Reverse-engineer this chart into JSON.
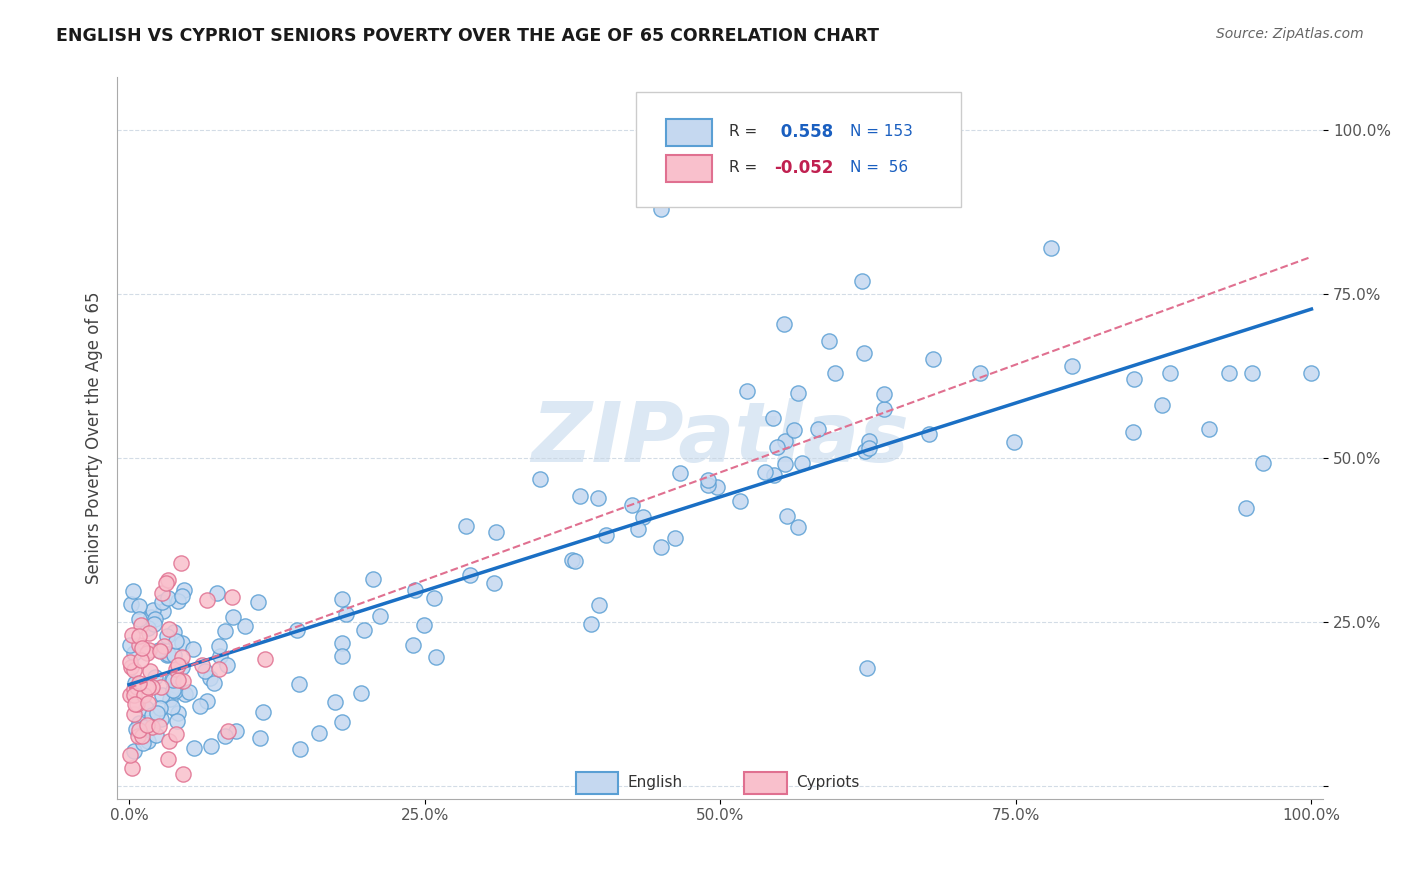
{
  "title": "ENGLISH VS CYPRIOT SENIORS POVERTY OVER THE AGE OF 65 CORRELATION CHART",
  "source": "Source: ZipAtlas.com",
  "ylabel": "Seniors Poverty Over the Age of 65",
  "english_R": 0.558,
  "english_N": 153,
  "cypriot_R": -0.052,
  "cypriot_N": 56,
  "english_fill": "#c5d8f0",
  "english_edge": "#5a9fd4",
  "cypriot_fill": "#f9c0cc",
  "cypriot_edge": "#e07090",
  "english_line_color": "#1a6fc4",
  "cypriot_line_color": "#e07090",
  "watermark_color": "#dce8f4",
  "background_color": "#ffffff",
  "grid_color": "#c8d4e0",
  "title_color": "#1a1a1a",
  "axis_label_color": "#444444",
  "tick_color": "#555555",
  "legend_text_color": "#333333",
  "legend_R_color_eng": "#1a5fc0",
  "legend_R_color_cyp": "#c02050",
  "legend_N_color": "#1a5fc0",
  "legend_N_color_cyp": "#1a5fc0"
}
